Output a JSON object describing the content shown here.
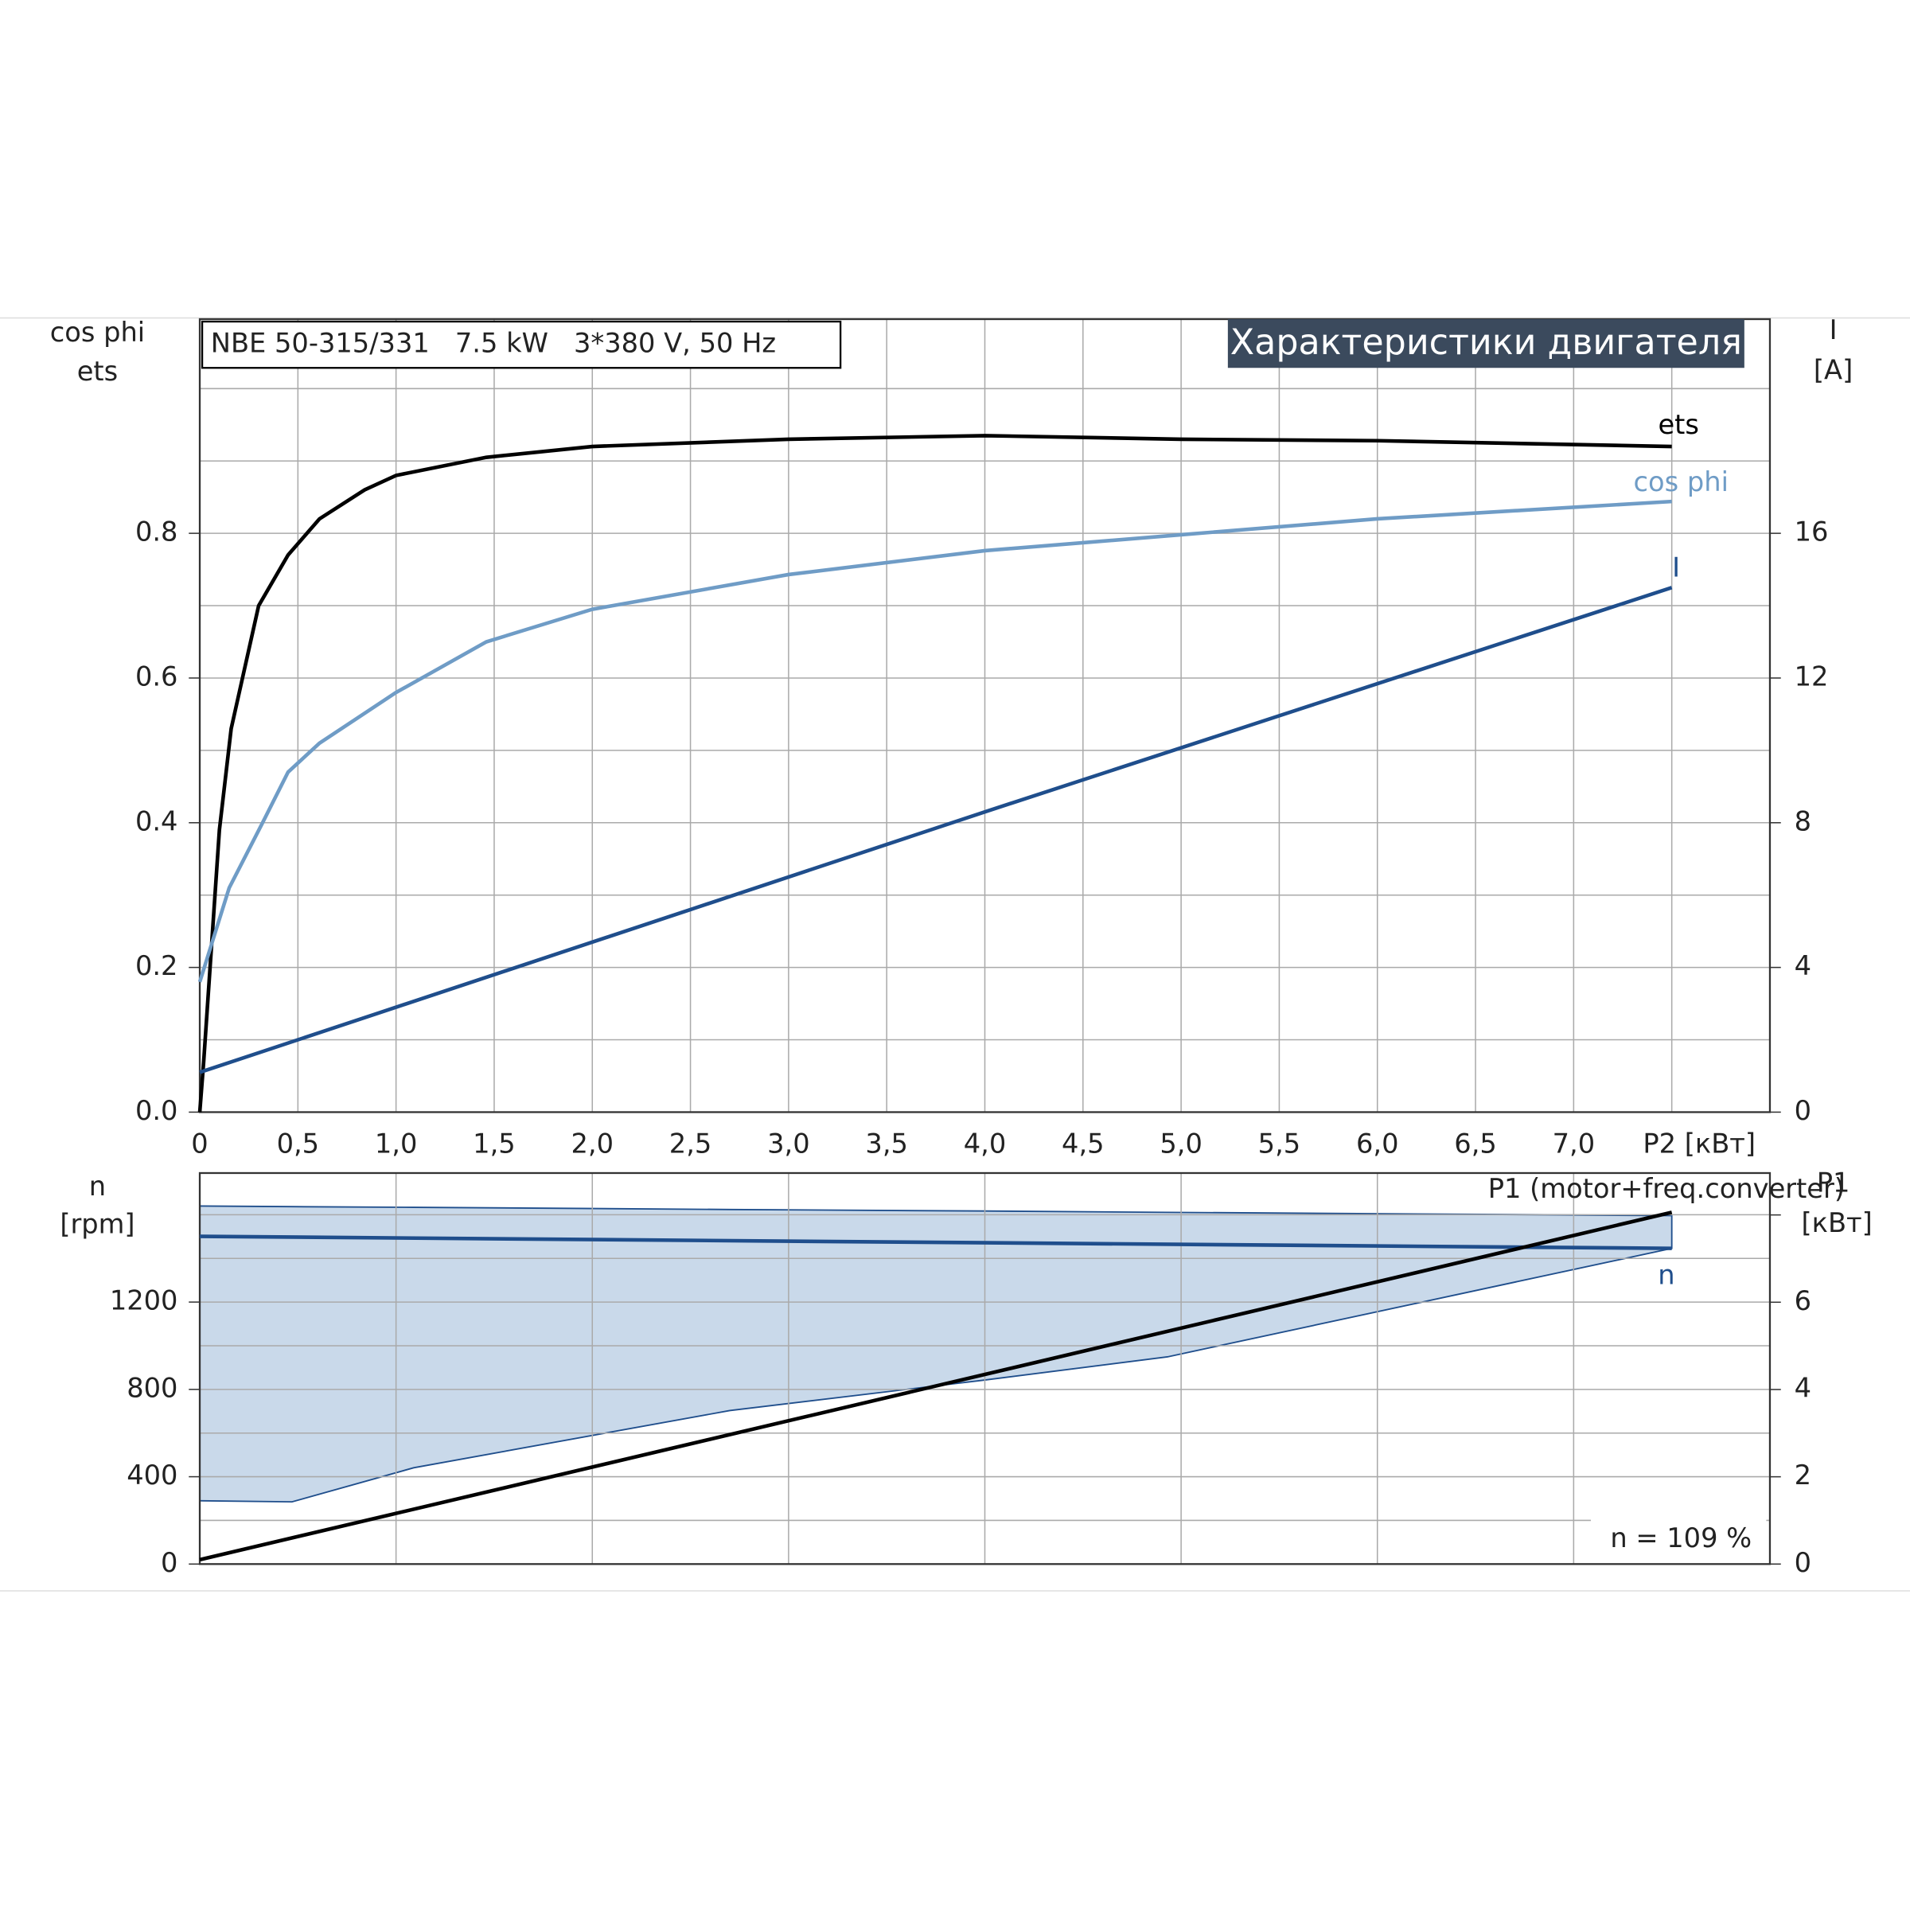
{
  "chart_data": [
    {
      "type": "line",
      "title": "Характеристики двигателя",
      "subtitle": "NBE 50-315/331   7.5 kW   3*380 V, 50 Hz",
      "ylabel": [
        "cos phi",
        "ets"
      ],
      "y2label": [
        "I",
        "[A]"
      ],
      "xlabel": "P2 [кВт]",
      "grid": true,
      "xlim": [
        0,
        8
      ],
      "xticks": [
        0,
        {
          "value": 0.5,
          "label": "0,5"
        },
        {
          "value": 1,
          "label": "1,0"
        },
        {
          "value": 1.5,
          "label": "1,5"
        },
        {
          "value": 2,
          "label": "2,0"
        },
        {
          "value": 2.5,
          "label": "2,5"
        },
        {
          "value": 3,
          "label": "3,0"
        },
        {
          "value": 3.5,
          "label": "3,5"
        },
        {
          "value": 4,
          "label": "4,0"
        },
        {
          "value": 4.5,
          "label": "4,5"
        },
        {
          "value": 5,
          "label": "5,0"
        },
        {
          "value": 5.5,
          "label": "5,5"
        },
        {
          "value": 6,
          "label": "6,0"
        },
        {
          "value": 6.5,
          "label": "6,5"
        },
        {
          "value": 7,
          "label": "7,0"
        }
      ],
      "minor_xticks": [
        7.5
      ],
      "ylim": [
        0,
        1.096
      ],
      "yticks": [
        {
          "value": 0,
          "label": "0.0"
        },
        0.2,
        0.4,
        0.6,
        0.8
      ],
      "minor_yticks": [
        0.1,
        0.3,
        0.5,
        0.7,
        0.9,
        1.0
      ],
      "y2lim": [
        0,
        21.92
      ],
      "y2ticks": [
        0,
        4,
        8,
        12,
        16
      ],
      "series": [
        {
          "name": "ets",
          "color": "#000000",
          "x": [
            0,
            0.02,
            0.05,
            0.1,
            0.16,
            0.3,
            0.45,
            0.61,
            0.84,
            1.0,
            1.46,
            2.0,
            3.0,
            4.0,
            5.0,
            6.0,
            7.5
          ],
          "values": [
            0,
            0.07,
            0.19,
            0.39,
            0.53,
            0.7,
            0.77,
            0.82,
            0.86,
            0.88,
            0.905,
            0.92,
            0.93,
            0.935,
            0.93,
            0.928,
            0.92
          ]
        },
        {
          "name": "cos phi",
          "color": "#6f9cc6",
          "x": [
            0,
            0.15,
            0.32,
            0.45,
            0.61,
            1.0,
            1.46,
            2.0,
            3.0,
            4.0,
            5.0,
            6.0,
            7.5
          ],
          "values": [
            0.18,
            0.31,
            0.4,
            0.47,
            0.51,
            0.58,
            0.65,
            0.695,
            0.743,
            0.776,
            0.798,
            0.82,
            0.844
          ]
        },
        {
          "name": "I",
          "color": "#1f4e8c",
          "axis": "y2",
          "x": [
            0,
            2.5,
            4.0,
            7.5
          ],
          "values": [
            1.1,
            5.6,
            8.3,
            14.5
          ]
        }
      ]
    },
    {
      "type": "line",
      "ylabel": [
        "n",
        "[rpm]"
      ],
      "y2label": [
        "P1",
        "[кВт]"
      ],
      "annotation": "n = 109 %",
      "grid": true,
      "xlim": [
        0,
        8
      ],
      "xticks": [],
      "minor_xticks": [
        1,
        2,
        3,
        4,
        5,
        6,
        7
      ],
      "ylim": [
        0,
        1791
      ],
      "yticks": [
        0,
        400,
        800,
        1200
      ],
      "minor_yticks": [
        200,
        600,
        1000,
        1400,
        1600
      ],
      "y2lim": [
        0,
        8.96
      ],
      "y2ticks": [
        0,
        2,
        4,
        6
      ],
      "minor_y2ticks": [
        8
      ],
      "band": {
        "color": "#c9d9ea",
        "x": [
          0,
          0.47,
          1.09,
          2.7,
          4.0,
          4.93,
          7.5
        ],
        "upper": [
          1640,
          1637,
          1634,
          1624,
          1617,
          1611,
          1596
        ],
        "lower": [
          290,
          285,
          441,
          703,
          843,
          949,
          1446
        ]
      },
      "series": [
        {
          "name": "n",
          "color": "#1f4e8c",
          "x": [
            0,
            7.5
          ],
          "values": [
            1501,
            1446
          ]
        },
        {
          "name": "P1 (motor+freq.converter)",
          "color": "#000000",
          "axis": "y2",
          "x": [
            0,
            7.5
          ],
          "values": [
            0.1,
            8.06
          ]
        }
      ]
    }
  ]
}
